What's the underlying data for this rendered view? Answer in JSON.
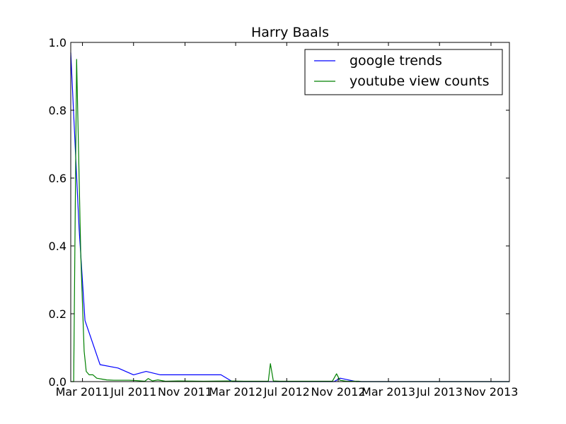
{
  "chart_data": {
    "type": "line",
    "title": "Harry Baals",
    "xlabel": "",
    "ylabel": "",
    "xlim": [
      "2011-02-01",
      "2013-12-15"
    ],
    "ylim": [
      0,
      1.0
    ],
    "x_ticks": [
      {
        "date": "2011-03-01",
        "label": "Mar 2011"
      },
      {
        "date": "2011-07-01",
        "label": "Jul 2011"
      },
      {
        "date": "2011-11-01",
        "label": "Nov 2011"
      },
      {
        "date": "2012-03-01",
        "label": "Mar 2012"
      },
      {
        "date": "2012-07-01",
        "label": "Jul 2012"
      },
      {
        "date": "2012-11-01",
        "label": "Nov 2012"
      },
      {
        "date": "2013-03-01",
        "label": "Mar 2013"
      },
      {
        "date": "2013-07-01",
        "label": "Jul 2013"
      },
      {
        "date": "2013-11-01",
        "label": "Nov 2013"
      }
    ],
    "y_ticks": [
      {
        "value": 0.0,
        "label": "0.0"
      },
      {
        "value": 0.2,
        "label": "0.2"
      },
      {
        "value": 0.4,
        "label": "0.4"
      },
      {
        "value": 0.6,
        "label": "0.6"
      },
      {
        "value": 0.8,
        "label": "0.8"
      },
      {
        "value": 1.0,
        "label": "1.0"
      }
    ],
    "grid": false,
    "legend_position": "top-right",
    "series": [
      {
        "name": "google trends",
        "color": "#0000ff",
        "points": [
          {
            "x": "2011-02-01",
            "y": 0.97
          },
          {
            "x": "2011-02-21",
            "y": 0.45
          },
          {
            "x": "2011-03-07",
            "y": 0.18
          },
          {
            "x": "2011-04-12",
            "y": 0.05
          },
          {
            "x": "2011-05-25",
            "y": 0.04
          },
          {
            "x": "2011-07-01",
            "y": 0.02
          },
          {
            "x": "2011-07-31",
            "y": 0.03
          },
          {
            "x": "2011-09-03",
            "y": 0.02
          },
          {
            "x": "2011-11-03",
            "y": 0.02
          },
          {
            "x": "2012-01-06",
            "y": 0.02
          },
          {
            "x": "2012-01-26",
            "y": 0.02
          },
          {
            "x": "2012-02-22",
            "y": 0.0
          },
          {
            "x": "2012-10-22",
            "y": 0.0
          },
          {
            "x": "2012-11-06",
            "y": 0.01
          },
          {
            "x": "2012-11-25",
            "y": 0.005
          },
          {
            "x": "2012-12-14",
            "y": 0.0
          },
          {
            "x": "2013-12-15",
            "y": 0.0
          }
        ]
      },
      {
        "name": "youtube view counts",
        "color": "#008000",
        "points": [
          {
            "x": "2011-02-01",
            "y": 0.0
          },
          {
            "x": "2011-02-08",
            "y": 0.0
          },
          {
            "x": "2011-02-15",
            "y": 0.95
          },
          {
            "x": "2011-02-25",
            "y": 0.37
          },
          {
            "x": "2011-03-05",
            "y": 0.09
          },
          {
            "x": "2011-03-10",
            "y": 0.03
          },
          {
            "x": "2011-03-17",
            "y": 0.02
          },
          {
            "x": "2011-03-26",
            "y": 0.02
          },
          {
            "x": "2011-04-04",
            "y": 0.01
          },
          {
            "x": "2011-04-18",
            "y": 0.007
          },
          {
            "x": "2011-04-28",
            "y": 0.005
          },
          {
            "x": "2011-05-15",
            "y": 0.004
          },
          {
            "x": "2011-06-01",
            "y": 0.004
          },
          {
            "x": "2011-06-20",
            "y": 0.004
          },
          {
            "x": "2011-07-08",
            "y": 0.003
          },
          {
            "x": "2011-07-28",
            "y": 0.001
          },
          {
            "x": "2011-08-05",
            "y": 0.009
          },
          {
            "x": "2011-08-15",
            "y": 0.002
          },
          {
            "x": "2011-08-28",
            "y": 0.005
          },
          {
            "x": "2011-09-15",
            "y": 0.001
          },
          {
            "x": "2011-10-15",
            "y": 0.002
          },
          {
            "x": "2011-12-15",
            "y": 0.001
          },
          {
            "x": "2012-02-15",
            "y": 0.002
          },
          {
            "x": "2012-03-20",
            "y": 0.001
          },
          {
            "x": "2012-05-01",
            "y": 0.001
          },
          {
            "x": "2012-05-18",
            "y": 0.001
          },
          {
            "x": "2012-05-23",
            "y": 0.053
          },
          {
            "x": "2012-05-30",
            "y": 0.002
          },
          {
            "x": "2012-06-15",
            "y": 0.001
          },
          {
            "x": "2012-08-01",
            "y": 0.001
          },
          {
            "x": "2012-10-01",
            "y": 0.001
          },
          {
            "x": "2012-10-18",
            "y": 0.001
          },
          {
            "x": "2012-10-28",
            "y": 0.023
          },
          {
            "x": "2012-11-05",
            "y": 0.004
          },
          {
            "x": "2012-11-20",
            "y": 0.001
          },
          {
            "x": "2012-12-20",
            "y": 0.001
          },
          {
            "x": "2012-12-27",
            "y": 0.0
          },
          {
            "x": "2013-12-15",
            "y": 0.0
          }
        ]
      }
    ]
  }
}
